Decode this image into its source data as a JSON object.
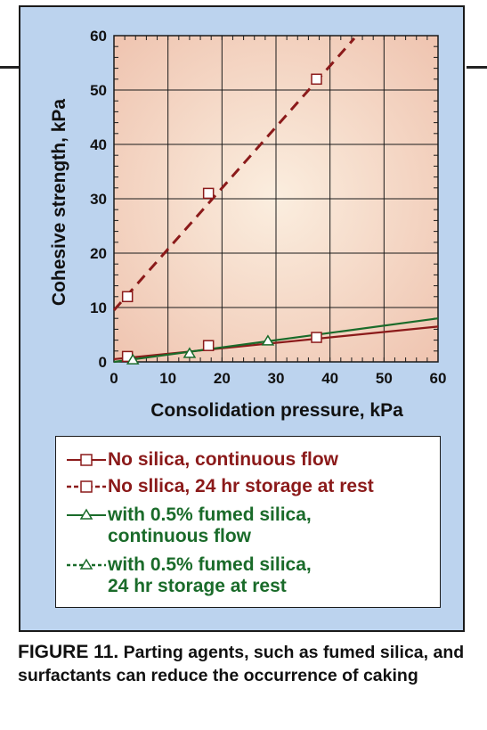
{
  "chart_data": {
    "type": "line",
    "xlabel": "Consolidation pressure, kPa",
    "ylabel": "Cohesive strength, kPa",
    "xlim": [
      0,
      60
    ],
    "ylim": [
      0,
      60
    ],
    "xticks": [
      "0",
      "10",
      "20",
      "30",
      "40",
      "50",
      "60"
    ],
    "yticks": [
      "0",
      "10",
      "20",
      "30",
      "40",
      "50",
      "60"
    ],
    "grid": true,
    "legend_position": "bottom",
    "series": [
      {
        "name": "No silica, continuous flow",
        "color": "#8b1a1a",
        "dash": "solid",
        "marker": "square",
        "points": [
          {
            "x": 2.5,
            "y": 1.0
          },
          {
            "x": 17.5,
            "y": 3.0
          },
          {
            "x": 37.5,
            "y": 4.5
          }
        ],
        "fit": [
          {
            "x": 0,
            "y": 0.5
          },
          {
            "x": 60,
            "y": 6.5
          }
        ]
      },
      {
        "name": "No sllica, 24 hr storage at rest",
        "color": "#8b1a1a",
        "dash": "dashed",
        "marker": "square",
        "points": [
          {
            "x": 2.5,
            "y": 12.0
          },
          {
            "x": 17.5,
            "y": 31.0
          },
          {
            "x": 37.5,
            "y": 52.0
          }
        ],
        "fit": [
          {
            "x": 0,
            "y": 9.5
          },
          {
            "x": 44.5,
            "y": 59.5
          }
        ]
      },
      {
        "name": "with 0.5% fumed silica,\ncontinuous flow",
        "color": "#1a6b2a",
        "dash": "solid",
        "marker": "triangle",
        "points": [
          {
            "x": 3.5,
            "y": 0.3
          },
          {
            "x": 14,
            "y": 1.5
          },
          {
            "x": 28.5,
            "y": 3.8
          }
        ],
        "fit": [
          {
            "x": 0,
            "y": 0
          },
          {
            "x": 60,
            "y": 8.0
          }
        ]
      },
      {
        "name": "with 0.5% fumed silica,\n24 hr storage at rest",
        "color": "#1a6b2a",
        "dash": "dashed",
        "marker": "triangle",
        "points": [],
        "fit": [
          {
            "x": 0,
            "y": 0
          },
          {
            "x": 60,
            "y": 8.0
          }
        ]
      }
    ]
  },
  "caption": {
    "label": "FIGURE 11.",
    "text": "Parting agents, such as fumed silica, and surfactants can reduce the occurrence of caking"
  }
}
